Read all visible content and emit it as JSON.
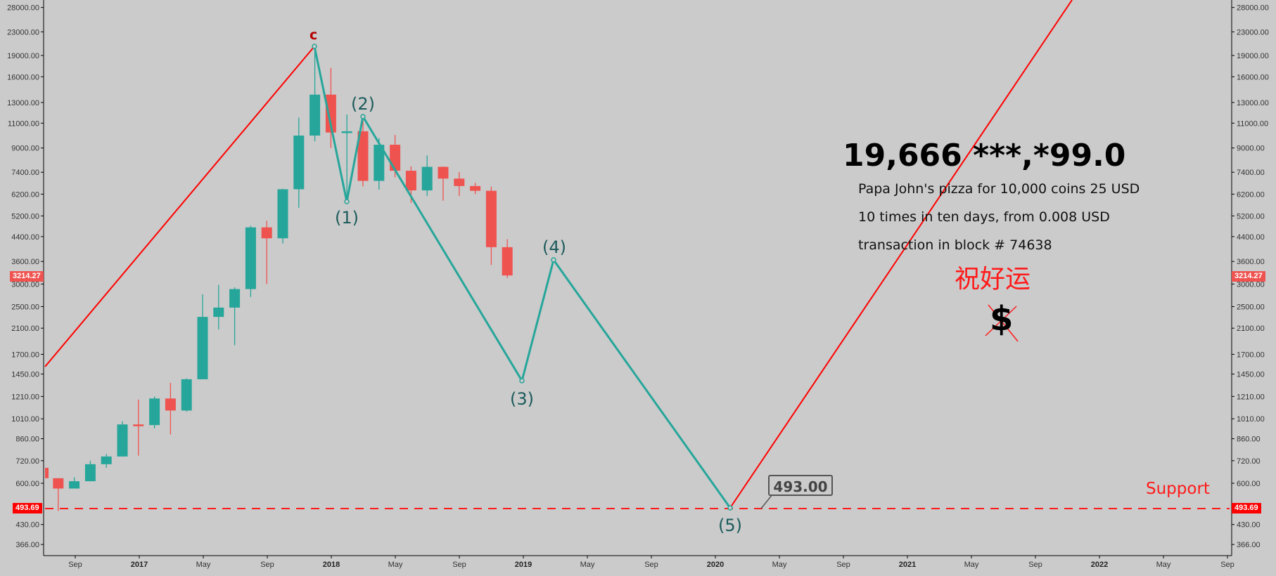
{
  "chart_data": {
    "type": "candlestick",
    "title": "",
    "scale": "log",
    "y_axis": {
      "ticks": [
        28000.0,
        23000.0,
        19000.0,
        16000.0,
        13000.0,
        11000.0,
        9000.0,
        7400.0,
        6200.0,
        5200.0,
        4400.0,
        3600.0,
        3000.0,
        2500.0,
        2100.0,
        1700.0,
        1450.0,
        1210.0,
        1010.0,
        860.0,
        720.0,
        600.0,
        430.0,
        366.0
      ],
      "tick_labels": [
        "28000.00",
        "23000.00",
        "19000.00",
        "16000.00",
        "13000.00",
        "11000.00",
        "9000.00",
        "7400.00",
        "6200.00",
        "5200.00",
        "4400.00",
        "3600.00",
        "3000.00",
        "2500.00",
        "2100.00",
        "1700.00",
        "1450.00",
        "1210.00",
        "1010.00",
        "860.00",
        "720.00",
        "600.00",
        "430.00",
        "366.00"
      ],
      "ylim": [
        340,
        31000
      ],
      "both_sides": true
    },
    "x_axis": {
      "tick_labels": [
        "Sep",
        "2017",
        "May",
        "Sep",
        "2018",
        "May",
        "Sep",
        "2019",
        "May",
        "Sep",
        "2020",
        "May",
        "Sep",
        "2021",
        "May",
        "Sep",
        "2022",
        "May",
        "Sep"
      ],
      "bold_labels": [
        "2017",
        "2018",
        "2019",
        "2020",
        "2021",
        "2022"
      ],
      "interval": "monthly"
    },
    "grid": false,
    "series": [
      {
        "name": "BTC monthly candles (approx.)",
        "candles": [
          {
            "period": "2016-07",
            "open": 680,
            "high": 680,
            "low": 620,
            "close": 625,
            "partial": true
          },
          {
            "period": "2016-08",
            "open": 625,
            "high": 625,
            "low": 480,
            "close": 575
          },
          {
            "period": "2016-09",
            "open": 575,
            "high": 630,
            "low": 575,
            "close": 610
          },
          {
            "period": "2016-10",
            "open": 610,
            "high": 720,
            "low": 610,
            "close": 700
          },
          {
            "period": "2016-11",
            "open": 700,
            "high": 760,
            "low": 680,
            "close": 745
          },
          {
            "period": "2016-12",
            "open": 745,
            "high": 990,
            "low": 745,
            "close": 965
          },
          {
            "period": "2017-01",
            "open": 965,
            "high": 1180,
            "low": 750,
            "close": 960
          },
          {
            "period": "2017-02",
            "open": 960,
            "high": 1210,
            "low": 935,
            "close": 1190
          },
          {
            "period": "2017-03",
            "open": 1190,
            "high": 1350,
            "low": 890,
            "close": 1080
          },
          {
            "period": "2017-04",
            "open": 1080,
            "high": 1400,
            "low": 1070,
            "close": 1390
          },
          {
            "period": "2017-05",
            "open": 1390,
            "high": 2760,
            "low": 1390,
            "close": 2300
          },
          {
            "period": "2017-06",
            "open": 2300,
            "high": 2980,
            "low": 2080,
            "close": 2480
          },
          {
            "period": "2017-07",
            "open": 2480,
            "high": 2920,
            "low": 1830,
            "close": 2880
          },
          {
            "period": "2017-08",
            "open": 2880,
            "high": 4800,
            "low": 2700,
            "close": 4740
          },
          {
            "period": "2017-09",
            "open": 4740,
            "high": 5000,
            "low": 3000,
            "close": 4340
          },
          {
            "period": "2017-10",
            "open": 4340,
            "high": 6470,
            "low": 4160,
            "close": 6450
          },
          {
            "period": "2017-11",
            "open": 6450,
            "high": 11500,
            "low": 5550,
            "close": 9950
          },
          {
            "period": "2017-12",
            "open": 9950,
            "high": 19660,
            "low": 9500,
            "close": 13850
          },
          {
            "period": "2018-01",
            "open": 13850,
            "high": 17200,
            "low": 9000,
            "close": 10200
          },
          {
            "period": "2018-02",
            "open": 10200,
            "high": 11800,
            "low": 5900,
            "close": 10300
          },
          {
            "period": "2018-03",
            "open": 10300,
            "high": 11700,
            "low": 6600,
            "close": 6900
          },
          {
            "period": "2018-04",
            "open": 6900,
            "high": 9750,
            "low": 6430,
            "close": 9240
          },
          {
            "period": "2018-05",
            "open": 9240,
            "high": 10000,
            "low": 7100,
            "close": 7490
          },
          {
            "period": "2018-06",
            "open": 7490,
            "high": 7760,
            "low": 5780,
            "close": 6390
          },
          {
            "period": "2018-07",
            "open": 6390,
            "high": 8480,
            "low": 6110,
            "close": 7730
          },
          {
            "period": "2018-08",
            "open": 7730,
            "high": 7750,
            "low": 5880,
            "close": 7030
          },
          {
            "period": "2018-09",
            "open": 7030,
            "high": 7410,
            "low": 6100,
            "close": 6620
          },
          {
            "period": "2018-10",
            "open": 6620,
            "high": 6790,
            "low": 6200,
            "close": 6370
          },
          {
            "period": "2018-11",
            "open": 6370,
            "high": 6590,
            "low": 3500,
            "close": 4040
          },
          {
            "period": "2018-12",
            "open": 4040,
            "high": 4310,
            "low": 3150,
            "close": 3214.27
          }
        ],
        "up_color": "#26a69a",
        "down_color": "#ef5350"
      }
    ],
    "elliott_wave_projection": {
      "color": "#26a69a",
      "points": [
        {
          "label": "c",
          "period": "2017-12",
          "price": 19666
        },
        {
          "label": "(1)",
          "period": "2018-02",
          "price": 5900
        },
        {
          "label": "(2)",
          "period": "2018-03",
          "price": 11700
        },
        {
          "label": "(3)",
          "period": "2019-01",
          "price": 1380
        },
        {
          "label": "(4)",
          "period": "2019-03",
          "price": 3650
        },
        {
          "label": "(5)",
          "period": "2020-02",
          "price": 493
        }
      ]
    },
    "trend_lines": [
      {
        "name": "rise-line",
        "color": "#ff0000",
        "from": {
          "period": "2016-07",
          "price": 1850
        },
        "to": {
          "period": "2017-12",
          "price": 19666
        }
      },
      {
        "name": "projected-rise-line",
        "color": "#ff0000",
        "from": {
          "period": "2020-02",
          "price": 493
        },
        "to": {
          "period": "2022-01",
          "price": 31000
        }
      }
    ],
    "horizontal_lines": [
      {
        "name": "support",
        "price": 493.69,
        "style": "dashed",
        "color": "#ff0000",
        "label": "Support"
      }
    ],
    "current_price": 3214.27,
    "annotations": [
      "19,666  ***,*99.0",
      "Papa John's pizza for 10,000 coins 25 USD",
      "10 times in ten days, from 0.008 USD",
      "transaction in block # 74638",
      "祝好运",
      "$",
      "493.00"
    ]
  },
  "labels": {
    "wave_c": "c",
    "wave_1": "(1)",
    "wave_2": "(2)",
    "wave_3": "(3)",
    "wave_4": "(4)",
    "wave_5": "(5)",
    "big_number": "19,666  ***,*99.0",
    "line1": "Papa John's pizza for 10,000 coins 25 USD",
    "line2": "10 times in ten days, from 0.008 USD",
    "line3": "transaction in block # 74638",
    "chinese": "祝好运",
    "dollar": "$",
    "support": "Support",
    "callout": "493.00",
    "last_price_tag": "3214.27",
    "support_price_tag": "493.69"
  },
  "colors": {
    "background": "#cbcbcb",
    "up": "#26a69a",
    "down": "#ef5350",
    "wave": "#26a69a",
    "trend": "#ff0000",
    "support": "#ff1a1a",
    "last_price_tag": "#ef5350",
    "support_tag": "#ff0000"
  }
}
